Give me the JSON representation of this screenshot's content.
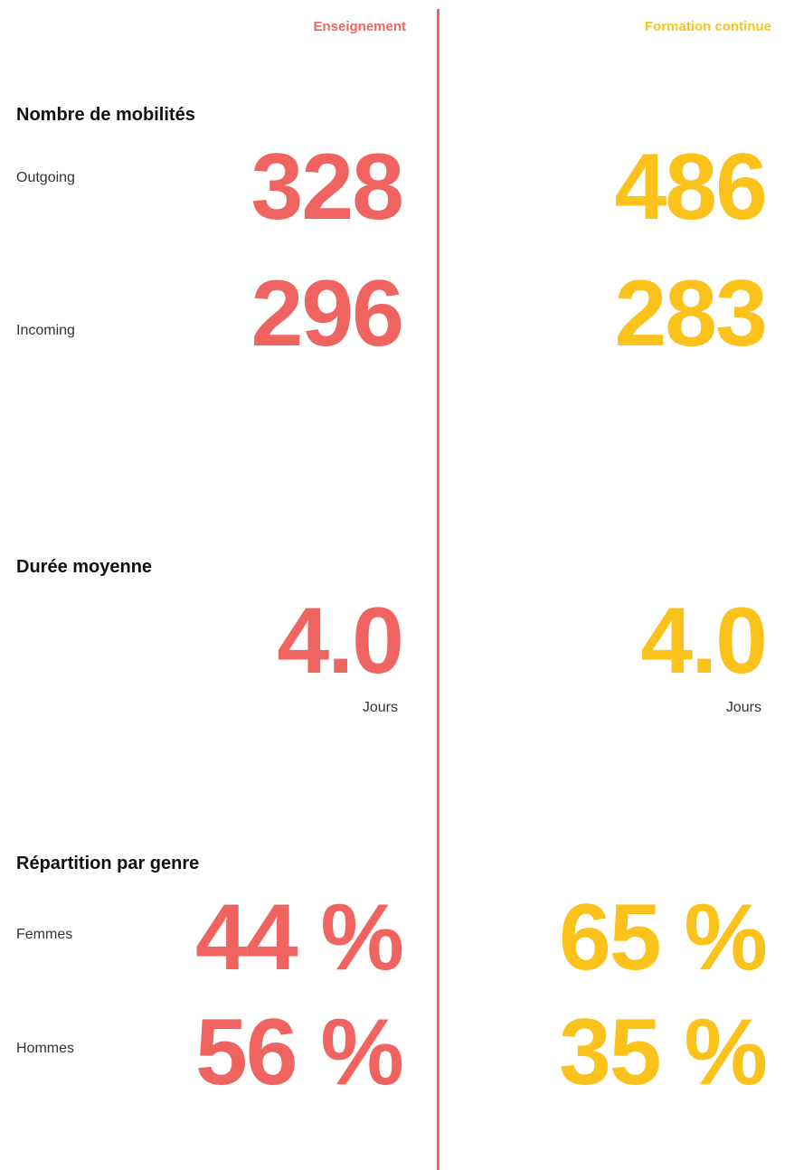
{
  "columns": [
    "Enseignement",
    "Formation continue"
  ],
  "sections": [
    {
      "title": "Nombre de mobilités",
      "rows": [
        {
          "label": "Outgoing",
          "values": [
            328,
            486
          ]
        },
        {
          "label": "Incoming",
          "values": [
            296,
            283
          ]
        }
      ]
    },
    {
      "title": "Durée moyenne",
      "rows": [
        {
          "values": [
            "4.0",
            "4.0"
          ],
          "unit": "Jours"
        }
      ]
    },
    {
      "title": "Répartition par genre",
      "rows": [
        {
          "label": "Femmes",
          "values": [
            "44 %",
            "65 %"
          ]
        },
        {
          "label": "Hommes",
          "values": [
            "56 %",
            "35 %"
          ]
        }
      ]
    }
  ]
}
